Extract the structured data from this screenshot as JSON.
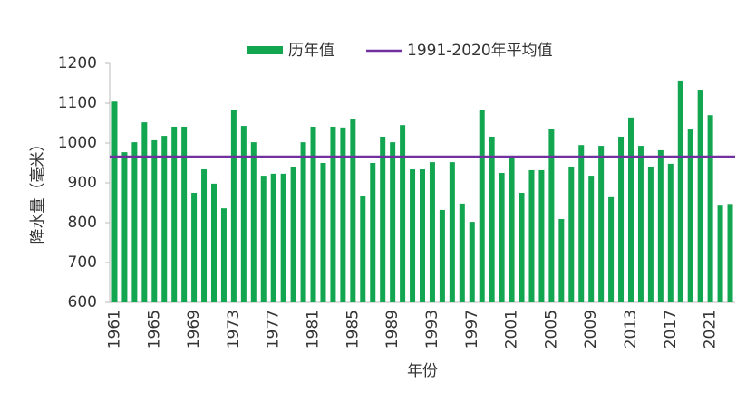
{
  "chart_data": {
    "type": "bar",
    "xlabel": "年份",
    "ylabel": "降水量（毫米）",
    "categories": [
      "1961",
      null,
      null,
      null,
      "1965",
      null,
      null,
      null,
      "1969",
      null,
      null,
      null,
      "1973",
      null,
      null,
      null,
      "1977",
      null,
      null,
      null,
      "1981",
      null,
      null,
      null,
      "1985",
      null,
      null,
      null,
      "1989",
      null,
      null,
      null,
      "1993",
      null,
      null,
      null,
      "1997",
      null,
      null,
      null,
      "2001",
      null,
      null,
      null,
      "2005",
      null,
      null,
      null,
      "2009",
      null,
      null,
      null,
      "2013",
      null,
      null,
      null,
      "2017",
      null,
      null,
      null,
      "2021",
      null,
      null
    ],
    "series": [
      {
        "name": "历年值",
        "color": "#12a650",
        "values": [
          1104,
          977,
          1002,
          1052,
          1007,
          1018,
          1041,
          1041,
          875,
          934,
          898,
          836,
          1082,
          1043,
          1002,
          918,
          923,
          923,
          939,
          1002,
          1041,
          950,
          1041,
          1039,
          1059,
          868,
          950,
          1016,
          1002,
          1045,
          934,
          934,
          952,
          832,
          952,
          848,
          802,
          1082,
          1016,
          925,
          964,
          875,
          932,
          932,
          1036,
          809,
          941,
          995,
          918,
          993,
          864,
          1016,
          1064,
          993,
          941,
          982,
          948,
          1157,
          1034,
          1134,
          1070,
          845,
          847
        ]
      }
    ],
    "reference_line": {
      "name": "1991-2020年平均值",
      "value": 966,
      "color": "#7030a0"
    },
    "ylim": [
      600,
      1200
    ],
    "yticks": [
      600,
      700,
      800,
      900,
      1000,
      1100,
      1200
    ],
    "grid": false,
    "legend": "top"
  }
}
